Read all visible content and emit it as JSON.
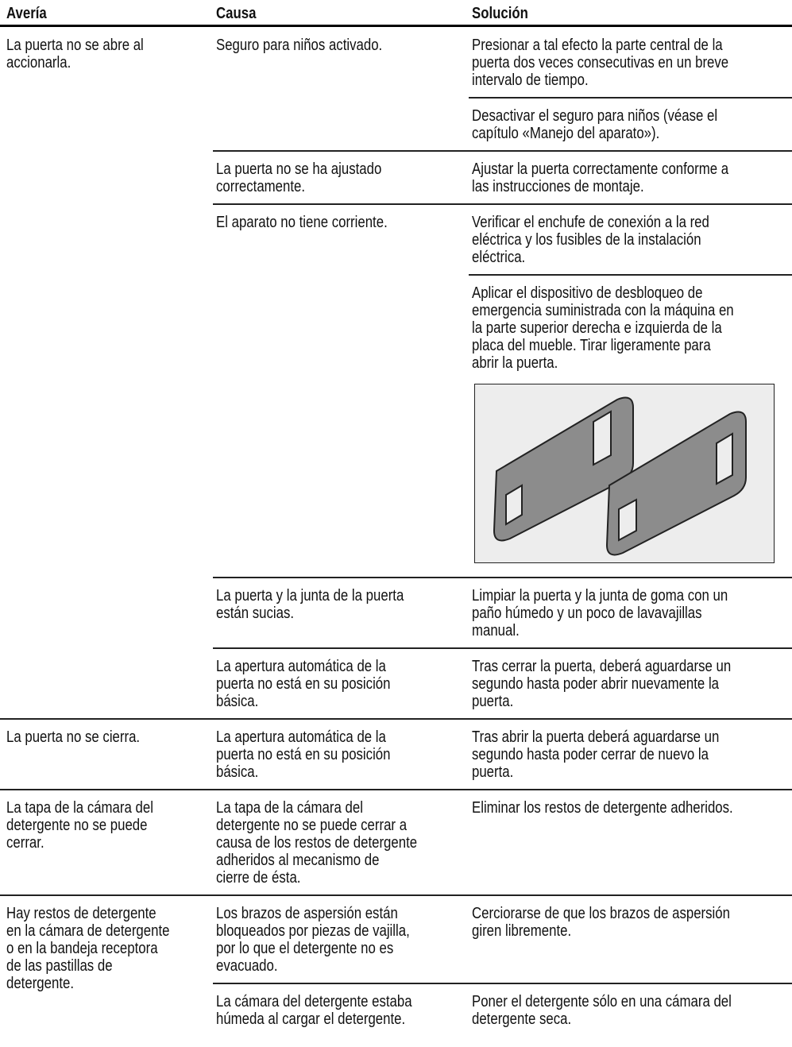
{
  "header": {
    "fault": "Avería",
    "cause": "Causa",
    "solution": "Solución"
  },
  "groups": [
    {
      "fault": [
        "La puerta no se abre al",
        "accionarla."
      ],
      "causes": [
        {
          "cause": [
            "Seguro para niños activado."
          ],
          "solutions": [
            [
              "Presionar a tal efecto la parte central de la",
              "puerta dos veces consecutivas en un breve",
              "intervalo de tiempo."
            ],
            [
              "Desactivar el seguro para niños (véase el",
              "capítulo «Manejo del aparato»)."
            ]
          ]
        },
        {
          "cause": [
            "La puerta no se ha ajustado",
            "correctamente."
          ],
          "solutions": [
            [
              "Ajustar la puerta correctamente conforme a",
              "las instrucciones de montaje."
            ]
          ]
        },
        {
          "cause": [
            "El aparato no tiene corriente."
          ],
          "solutions": [
            [
              "Verificar el enchufe de conexión a la red",
              "eléctrica y los fusibles de la instalación",
              "eléctrica."
            ],
            [
              "Aplicar el dispositivo de desbloqueo de",
              "emergencia suministrada con la máquina en",
              "la parte superior derecha e izquierda de la",
              "placa del mueble. Tirar ligeramente para",
              "abrir la puerta."
            ]
          ]
        },
        {
          "cause": [
            "La puerta y la junta de la puerta",
            "están sucias."
          ],
          "solutions": [
            [
              "Limpiar la puerta y la junta de goma con un",
              "paño húmedo y un poco de lavavajillas",
              "manual."
            ]
          ]
        },
        {
          "cause": [
            "La apertura automática de la",
            "puerta no está en su posición",
            "básica."
          ],
          "solutions": [
            [
              "Tras cerrar la puerta, deberá aguardarse un",
              "segundo hasta poder abrir nuevamente la",
              "puerta."
            ]
          ]
        }
      ]
    },
    {
      "fault": [
        "La puerta no se cierra."
      ],
      "causes": [
        {
          "cause": [
            "La apertura automática de la",
            "puerta no está en su posición",
            "básica."
          ],
          "solutions": [
            [
              "Tras abrir la puerta deberá aguardarse un",
              "segundo hasta poder cerrar de nuevo la",
              "puerta."
            ]
          ]
        }
      ]
    },
    {
      "fault": [
        "La tapa de la cámara del",
        "detergente no se puede",
        "cerrar."
      ],
      "causes": [
        {
          "cause": [
            "La tapa de la cámara del",
            "detergente no se puede cerrar a",
            "causa de los restos de detergente",
            "adheridos al mecanismo de",
            "cierre de ésta."
          ],
          "solutions": [
            [
              "Eliminar los restos de detergente adheridos."
            ]
          ]
        }
      ]
    },
    {
      "fault": [
        "Hay restos de detergente",
        "en la cámara de detergente",
        "o en la bandeja receptora",
        "de las pastillas de",
        "detergente."
      ],
      "causes": [
        {
          "cause": [
            "Los brazos de aspersión están",
            "bloqueados por piezas de vajilla,",
            "por lo que el detergente no es",
            "evacuado."
          ],
          "solutions": [
            [
              "Cerciorarse de que los brazos de aspersión",
              "giren libremente."
            ]
          ]
        },
        {
          "cause": [
            "La cámara del detergente estaba",
            "húmeda al cargar el detergente."
          ],
          "solutions": [
            [
              "Poner el detergente sólo en una cámara del",
              "detergente seca."
            ]
          ]
        }
      ]
    }
  ]
}
